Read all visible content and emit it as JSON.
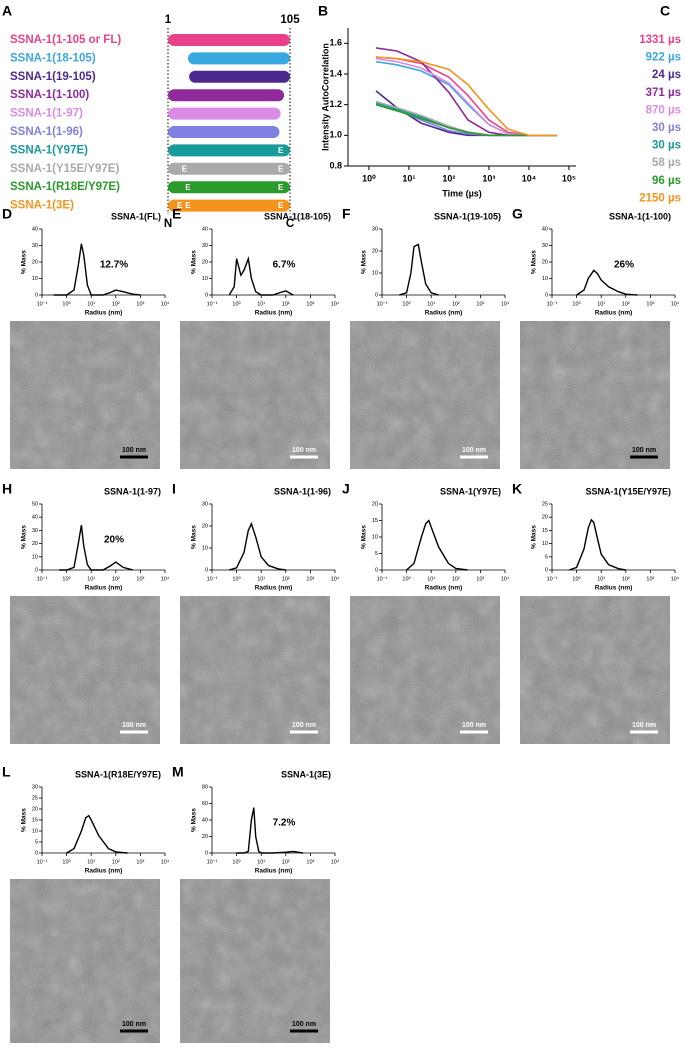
{
  "chart_data": [
    {
      "type": "range",
      "panel": "A",
      "xlim": [
        1,
        105
      ],
      "xticks": [
        1,
        105
      ],
      "end_labels": [
        "N",
        "C"
      ],
      "mutation_label": "E",
      "categories": [
        "SSNA-1(1-105 or FL)",
        "SSNA-1(18-105)",
        "SSNA-1(19-105)",
        "SSNA-1(1-100)",
        "SSNA-1(1-97)",
        "SSNA-1(1-96)",
        "SSNA-1(Y97E)",
        "SSNA-1(Y15E/Y97E)",
        "SSNA-1(R18E/Y97E)",
        "SSNA-1(3E)"
      ],
      "starts": [
        1,
        18,
        19,
        1,
        1,
        1,
        1,
        1,
        1,
        1
      ],
      "ends": [
        105,
        105,
        105,
        100,
        97,
        96,
        105,
        105,
        105,
        105
      ],
      "colors": [
        "#e8418a",
        "#3aa8e0",
        "#4b2a8f",
        "#8e2a9a",
        "#d98be6",
        "#8080e0",
        "#1a9a9a",
        "#aaaaaa",
        "#2a9a2a",
        "#f5941d"
      ],
      "mutations": [
        [],
        [],
        [],
        [],
        [],
        [],
        [
          97
        ],
        [
          15,
          97
        ],
        [
          18,
          97
        ],
        [
          11,
          18,
          97
        ]
      ]
    },
    {
      "type": "line",
      "panel": "B",
      "xscale": "log",
      "ylabel": "Intensity AutoCorrelation",
      "xlabel": "Time (µs)",
      "xlim": [
        0.3,
        150000
      ],
      "xticks": [
        {
          "value": 1,
          "label": "10⁰"
        },
        {
          "value": 10,
          "label": "10¹"
        },
        {
          "value": 100,
          "label": "10²"
        },
        {
          "value": 1000,
          "label": "10³"
        },
        {
          "value": 10000,
          "label": "10⁴"
        },
        {
          "value": 100000,
          "label": "10⁵"
        }
      ],
      "ylim": [
        0.8,
        1.7
      ],
      "yticks": [
        0.8,
        {
          "value": 1,
          "label": "1.0"
        },
        1.2,
        1.4,
        1.6
      ],
      "x": [
        1.5,
        5,
        20,
        100,
        300,
        1000,
        3000,
        10000,
        50000
      ],
      "series": [
        {
          "color": "#e8418a",
          "values": [
            1.51,
            1.5,
            1.47,
            1.38,
            1.26,
            1.1,
            1.02,
            1,
            1
          ]
        },
        {
          "color": "#3aa8e0",
          "values": [
            1.48,
            1.46,
            1.42,
            1.33,
            1.2,
            1.07,
            1.01,
            1,
            1
          ]
        },
        {
          "color": "#4b2a8f",
          "values": [
            1.29,
            1.18,
            1.08,
            1.02,
            1,
            1,
            1,
            1,
            1
          ]
        },
        {
          "color": "#8e2a9a",
          "values": [
            1.57,
            1.55,
            1.48,
            1.28,
            1.1,
            1.02,
            1,
            1,
            1
          ]
        },
        {
          "color": "#d98be6",
          "values": [
            1.5,
            1.48,
            1.44,
            1.34,
            1.21,
            1.07,
            1.01,
            1,
            1
          ]
        },
        {
          "color": "#8080e0",
          "values": [
            1.22,
            1.17,
            1.1,
            1.03,
            1.01,
            1,
            1,
            1,
            1
          ]
        },
        {
          "color": "#1a9a9a",
          "values": [
            1.21,
            1.17,
            1.12,
            1.05,
            1.02,
            1,
            1,
            1,
            1
          ]
        },
        {
          "color": "#aaaaaa",
          "values": [
            1.22,
            1.18,
            1.13,
            1.06,
            1.02,
            1,
            1,
            1,
            1
          ]
        },
        {
          "color": "#2a9a2a",
          "values": [
            1.2,
            1.16,
            1.11,
            1.05,
            1.02,
            1,
            1,
            1,
            1
          ]
        },
        {
          "color": "#f5941d",
          "values": [
            1.51,
            1.5,
            1.48,
            1.43,
            1.33,
            1.17,
            1.04,
            1,
            1
          ]
        }
      ]
    },
    {
      "type": "dls",
      "panel": "D",
      "title": "SSNA-1(FL)",
      "annotation": "12.7%",
      "ylabel": "% Mass",
      "xlabel": "Radius (nm)",
      "xscale": "log",
      "xlim": [
        0.1,
        10000
      ],
      "xticks": [
        {
          "value": 0.1,
          "label": "10⁻¹"
        },
        {
          "value": 1,
          "label": "10⁰"
        },
        {
          "value": 10,
          "label": "10¹"
        },
        {
          "value": 100,
          "label": "10²"
        },
        {
          "value": 1000,
          "label": "10³"
        },
        {
          "value": 10000,
          "label": "10⁴"
        }
      ],
      "ylim": [
        0,
        40
      ],
      "yticks": [
        0,
        10,
        20,
        30,
        40
      ],
      "x": [
        0.3,
        1,
        2,
        3,
        4,
        5,
        7,
        10,
        30,
        60,
        100,
        200,
        500,
        1000
      ],
      "values": [
        0,
        0,
        3,
        18,
        31,
        24,
        6,
        0,
        0,
        1.5,
        3,
        2,
        0.5,
        0
      ],
      "image": {
        "scale_bar": "100 nm",
        "bar_color": "#000"
      }
    },
    {
      "type": "dls",
      "panel": "E",
      "title": "SSNA-1(18-105)",
      "annotation": "6.7%",
      "ylabel": "% Mass",
      "xlabel": "Radius (nm)",
      "xscale": "log",
      "xlim": [
        0.1,
        10000
      ],
      "xticks": [
        {
          "value": 0.1,
          "label": "10⁻¹"
        },
        {
          "value": 1,
          "label": "10⁰"
        },
        {
          "value": 10,
          "label": "10¹"
        },
        {
          "value": 100,
          "label": "10²"
        },
        {
          "value": 1000,
          "label": "10³"
        },
        {
          "value": 10000,
          "label": "10⁴"
        }
      ],
      "ylim": [
        0,
        40
      ],
      "yticks": [
        0,
        10,
        20,
        30,
        40
      ],
      "x": [
        0.5,
        0.8,
        1,
        1.5,
        2,
        3,
        4,
        6,
        10,
        30,
        60,
        100,
        200
      ],
      "values": [
        0,
        5,
        22,
        12,
        15,
        22,
        10,
        2,
        0,
        0,
        1.5,
        2.5,
        0
      ],
      "image": {
        "scale_bar": "100 nm",
        "bar_color": "#fff"
      }
    },
    {
      "type": "dls",
      "panel": "F",
      "title": "SSNA-1(19-105)",
      "ylabel": "% Mass",
      "xlabel": "Radius (nm)",
      "xscale": "log",
      "xlim": [
        0.1,
        10000
      ],
      "xticks": [
        {
          "value": 0.1,
          "label": "10⁻¹"
        },
        {
          "value": 1,
          "label": "10⁰"
        },
        {
          "value": 10,
          "label": "10¹"
        },
        {
          "value": 100,
          "label": "10²"
        },
        {
          "value": 1000,
          "label": "10³"
        },
        {
          "value": 10000,
          "label": "10⁴"
        }
      ],
      "ylim": [
        0,
        30
      ],
      "yticks": [
        0,
        10,
        20,
        30
      ],
      "x": [
        0.5,
        1,
        1.5,
        2,
        3,
        4,
        6,
        10,
        20
      ],
      "values": [
        0,
        1,
        10,
        22,
        23,
        15,
        5,
        1,
        0
      ],
      "image": {
        "scale_bar": "100 nm",
        "bar_color": "#fff"
      }
    },
    {
      "type": "dls",
      "panel": "G",
      "title": "SSNA-1(1-100)",
      "annotation": "26%",
      "ylabel": "% Mass",
      "xlabel": "Radius (nm)",
      "xscale": "log",
      "xlim": [
        0.1,
        10000
      ],
      "xticks": [
        {
          "value": 0.1,
          "label": "10⁻¹"
        },
        {
          "value": 1,
          "label": "10⁰"
        },
        {
          "value": 10,
          "label": "10¹"
        },
        {
          "value": 100,
          "label": "10²"
        },
        {
          "value": 1000,
          "label": "10³"
        },
        {
          "value": 10000,
          "label": "10⁴"
        }
      ],
      "ylim": [
        0,
        40
      ],
      "yticks": [
        0,
        10,
        20,
        30,
        40
      ],
      "x": [
        1,
        2,
        3,
        5,
        7,
        10,
        20,
        50,
        100,
        300
      ],
      "values": [
        0,
        3,
        10,
        15,
        13,
        9,
        5,
        2,
        0.5,
        0
      ],
      "image": {
        "scale_bar": "100 nm",
        "bar_color": "#000"
      }
    },
    {
      "type": "dls",
      "panel": "H",
      "title": "SSNA-1(1-97)",
      "annotation": "20%",
      "ylabel": "% Mass",
      "xlabel": "Radius (nm)",
      "xscale": "log",
      "xlim": [
        0.1,
        10000
      ],
      "xticks": [
        {
          "value": 0.1,
          "label": "10⁻¹"
        },
        {
          "value": 1,
          "label": "10⁰"
        },
        {
          "value": 10,
          "label": "10¹"
        },
        {
          "value": 100,
          "label": "10²"
        },
        {
          "value": 1000,
          "label": "10³"
        },
        {
          "value": 10000,
          "label": "10⁴"
        }
      ],
      "ylim": [
        0,
        50
      ],
      "yticks": [
        0,
        10,
        20,
        30,
        40,
        50
      ],
      "x": [
        0.5,
        1,
        2,
        3,
        4,
        5,
        7,
        10,
        30,
        60,
        100,
        200,
        500
      ],
      "values": [
        0,
        0,
        2,
        20,
        34,
        18,
        4,
        0,
        0,
        3,
        6,
        2,
        0
      ],
      "image": {
        "scale_bar": "100 nm",
        "bar_color": "#fff"
      }
    },
    {
      "type": "dls",
      "panel": "I",
      "title": "SSNA-1(1-96)",
      "ylabel": "% Mass",
      "xlabel": "Radius (nm)",
      "xscale": "log",
      "xlim": [
        0.1,
        10000
      ],
      "xticks": [
        {
          "value": 0.1,
          "label": "10⁻¹"
        },
        {
          "value": 1,
          "label": "10⁰"
        },
        {
          "value": 10,
          "label": "10¹"
        },
        {
          "value": 100,
          "label": "10²"
        },
        {
          "value": 1000,
          "label": "10³"
        },
        {
          "value": 10000,
          "label": "10⁴"
        }
      ],
      "ylim": [
        0,
        30
      ],
      "yticks": [
        0,
        10,
        20,
        30
      ],
      "x": [
        0.5,
        1,
        2,
        3,
        4,
        6,
        10,
        20,
        50,
        100
      ],
      "values": [
        0,
        1,
        8,
        18,
        21,
        15,
        6,
        2,
        0.5,
        0
      ],
      "image": {
        "scale_bar": "100 nm",
        "bar_color": "#fff"
      }
    },
    {
      "type": "dls",
      "panel": "J",
      "title": "SSNA-1(Y97E)",
      "ylabel": "% Mass",
      "xlabel": "Radius (nm)",
      "xscale": "log",
      "xlim": [
        0.1,
        10000
      ],
      "xticks": [
        {
          "value": 0.1,
          "label": "10⁻¹"
        },
        {
          "value": 1,
          "label": "10⁰"
        },
        {
          "value": 10,
          "label": "10¹"
        },
        {
          "value": 100,
          "label": "10²"
        },
        {
          "value": 1000,
          "label": "10³"
        },
        {
          "value": 10000,
          "label": "10⁴"
        }
      ],
      "ylim": [
        0,
        20
      ],
      "yticks": [
        0,
        5,
        10,
        15,
        20
      ],
      "x": [
        1,
        2,
        4,
        6,
        8,
        10,
        20,
        50,
        100,
        300
      ],
      "values": [
        0,
        2,
        10,
        14,
        15,
        13,
        7,
        2,
        0.5,
        0
      ],
      "image": {
        "scale_bar": "100 nm",
        "bar_color": "#fff"
      }
    },
    {
      "type": "dls",
      "panel": "K",
      "title": "SSNA-1(Y15E/Y97E)",
      "ylabel": "% Mass",
      "xlabel": "Radius (nm)",
      "xscale": "log",
      "xlim": [
        0.1,
        10000
      ],
      "xticks": [
        {
          "value": 0.1,
          "label": "10⁻¹"
        },
        {
          "value": 1,
          "label": "10⁰"
        },
        {
          "value": 10,
          "label": "10¹"
        },
        {
          "value": 100,
          "label": "10²"
        },
        {
          "value": 1000,
          "label": "10³"
        },
        {
          "value": 10000,
          "label": "10⁴"
        }
      ],
      "ylim": [
        0,
        25
      ],
      "yticks": [
        0,
        5,
        10,
        15,
        20,
        25
      ],
      "x": [
        0.5,
        1,
        2,
        3,
        4,
        5,
        7,
        10,
        20,
        50,
        100
      ],
      "values": [
        0,
        1,
        8,
        16,
        19,
        18,
        12,
        6,
        2,
        0.5,
        0
      ],
      "image": {
        "scale_bar": "100 nm",
        "bar_color": "#fff"
      }
    },
    {
      "type": "dls",
      "panel": "L",
      "title": "SSNA-1(R18E/Y97E)",
      "ylabel": "% Mass",
      "xlabel": "Radius (nm)",
      "xscale": "log",
      "xlim": [
        0.1,
        10000
      ],
      "xticks": [
        {
          "value": 0.1,
          "label": "10⁻¹"
        },
        {
          "value": 1,
          "label": "10⁰"
        },
        {
          "value": 10,
          "label": "10¹"
        },
        {
          "value": 100,
          "label": "10²"
        },
        {
          "value": 1000,
          "label": "10³"
        },
        {
          "value": 10000,
          "label": "10⁴"
        }
      ],
      "ylim": [
        0,
        30
      ],
      "yticks": [
        0,
        5,
        10,
        15,
        20,
        25,
        30
      ],
      "x": [
        1,
        2,
        4,
        6,
        8,
        10,
        20,
        50,
        100,
        300
      ],
      "values": [
        0,
        2,
        10,
        16,
        17,
        15,
        8,
        2,
        0.5,
        0
      ],
      "image": {
        "scale_bar": "100 nm",
        "bar_color": "#000"
      }
    },
    {
      "type": "dls",
      "panel": "M",
      "title": "SSNA-1(3E)",
      "annotation": "7.2%",
      "ylabel": "% Mass",
      "xlabel": "Radius (nm)",
      "xscale": "log",
      "xlim": [
        0.1,
        10000
      ],
      "xticks": [
        {
          "value": 0.1,
          "label": "10⁻¹"
        },
        {
          "value": 1,
          "label": "10⁰"
        },
        {
          "value": 10,
          "label": "10¹"
        },
        {
          "value": 100,
          "label": "10²"
        },
        {
          "value": 1000,
          "label": "10³"
        },
        {
          "value": 10000,
          "label": "10⁴"
        }
      ],
      "ylim": [
        0,
        80
      ],
      "yticks": [
        0,
        20,
        40,
        60,
        80
      ],
      "x": [
        1,
        2,
        3,
        4,
        5,
        6,
        8,
        10,
        30,
        100,
        200,
        500
      ],
      "values": [
        0,
        0,
        2,
        40,
        55,
        20,
        2,
        0,
        0,
        1,
        2,
        0
      ],
      "image": {
        "scale_bar": "100 nm",
        "bar_color": "#000"
      }
    }
  ],
  "panel_c": {
    "panel": "C",
    "values": [
      "1331 µs",
      "922 µs",
      "24 µs",
      "371 µs",
      "870 µs",
      "30 µs",
      "30 µs",
      "58 µs",
      "96 µs",
      "2150 µs"
    ],
    "colors": [
      "#e8418a",
      "#3aa8e0",
      "#4b2a8f",
      "#8e2a9a",
      "#d98be6",
      "#8080e0",
      "#1a9a9a",
      "#aaaaaa",
      "#2a9a2a",
      "#f5941d"
    ]
  }
}
